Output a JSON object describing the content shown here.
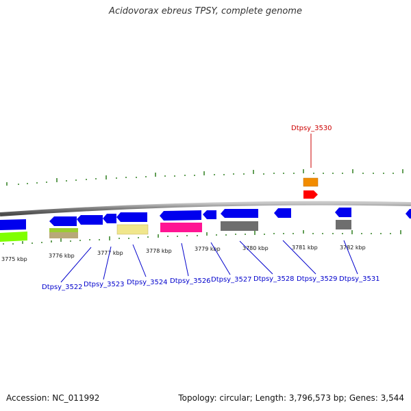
{
  "title": "Acidovorax ebreus TPSY, complete genome",
  "footer": {
    "accession": "Accession: NC_011992",
    "stats": "Topology: circular; Length: 3,796,573 bp; Genes: 3,544"
  },
  "colors": {
    "background": "#ffffff",
    "backbone": "#808080",
    "forward_cds": "#0000ee",
    "tick": "#2e7d1e",
    "callout_blue": "#0000cc",
    "callout_red": "#cc0000"
  },
  "tick_labels": [
    "3775 kbp",
    "3776 kbp",
    "3777 kbp",
    "3778 kbp",
    "3779 kbp",
    "3780 kbp",
    "3781 kbp",
    "3782 kbp"
  ],
  "gene_labels": [
    {
      "id": "label-3522",
      "text": "Dtpsy_3522",
      "color": "blue"
    },
    {
      "id": "label-3523",
      "text": "Dtpsy_3523",
      "color": "blue"
    },
    {
      "id": "label-3524",
      "text": "Dtpsy_3524",
      "color": "blue"
    },
    {
      "id": "label-3526",
      "text": "Dtpsy_3526",
      "color": "blue"
    },
    {
      "id": "label-3527",
      "text": "Dtpsy_3527",
      "color": "blue"
    },
    {
      "id": "label-3528",
      "text": "Dtpsy_3528",
      "color": "blue"
    },
    {
      "id": "label-3529",
      "text": "Dtpsy_3529",
      "color": "blue"
    },
    {
      "id": "label-3531",
      "text": "Dtpsy_3531",
      "color": "blue"
    },
    {
      "id": "label-3530",
      "text": "Dtpsy_3530",
      "color": "red"
    }
  ]
}
